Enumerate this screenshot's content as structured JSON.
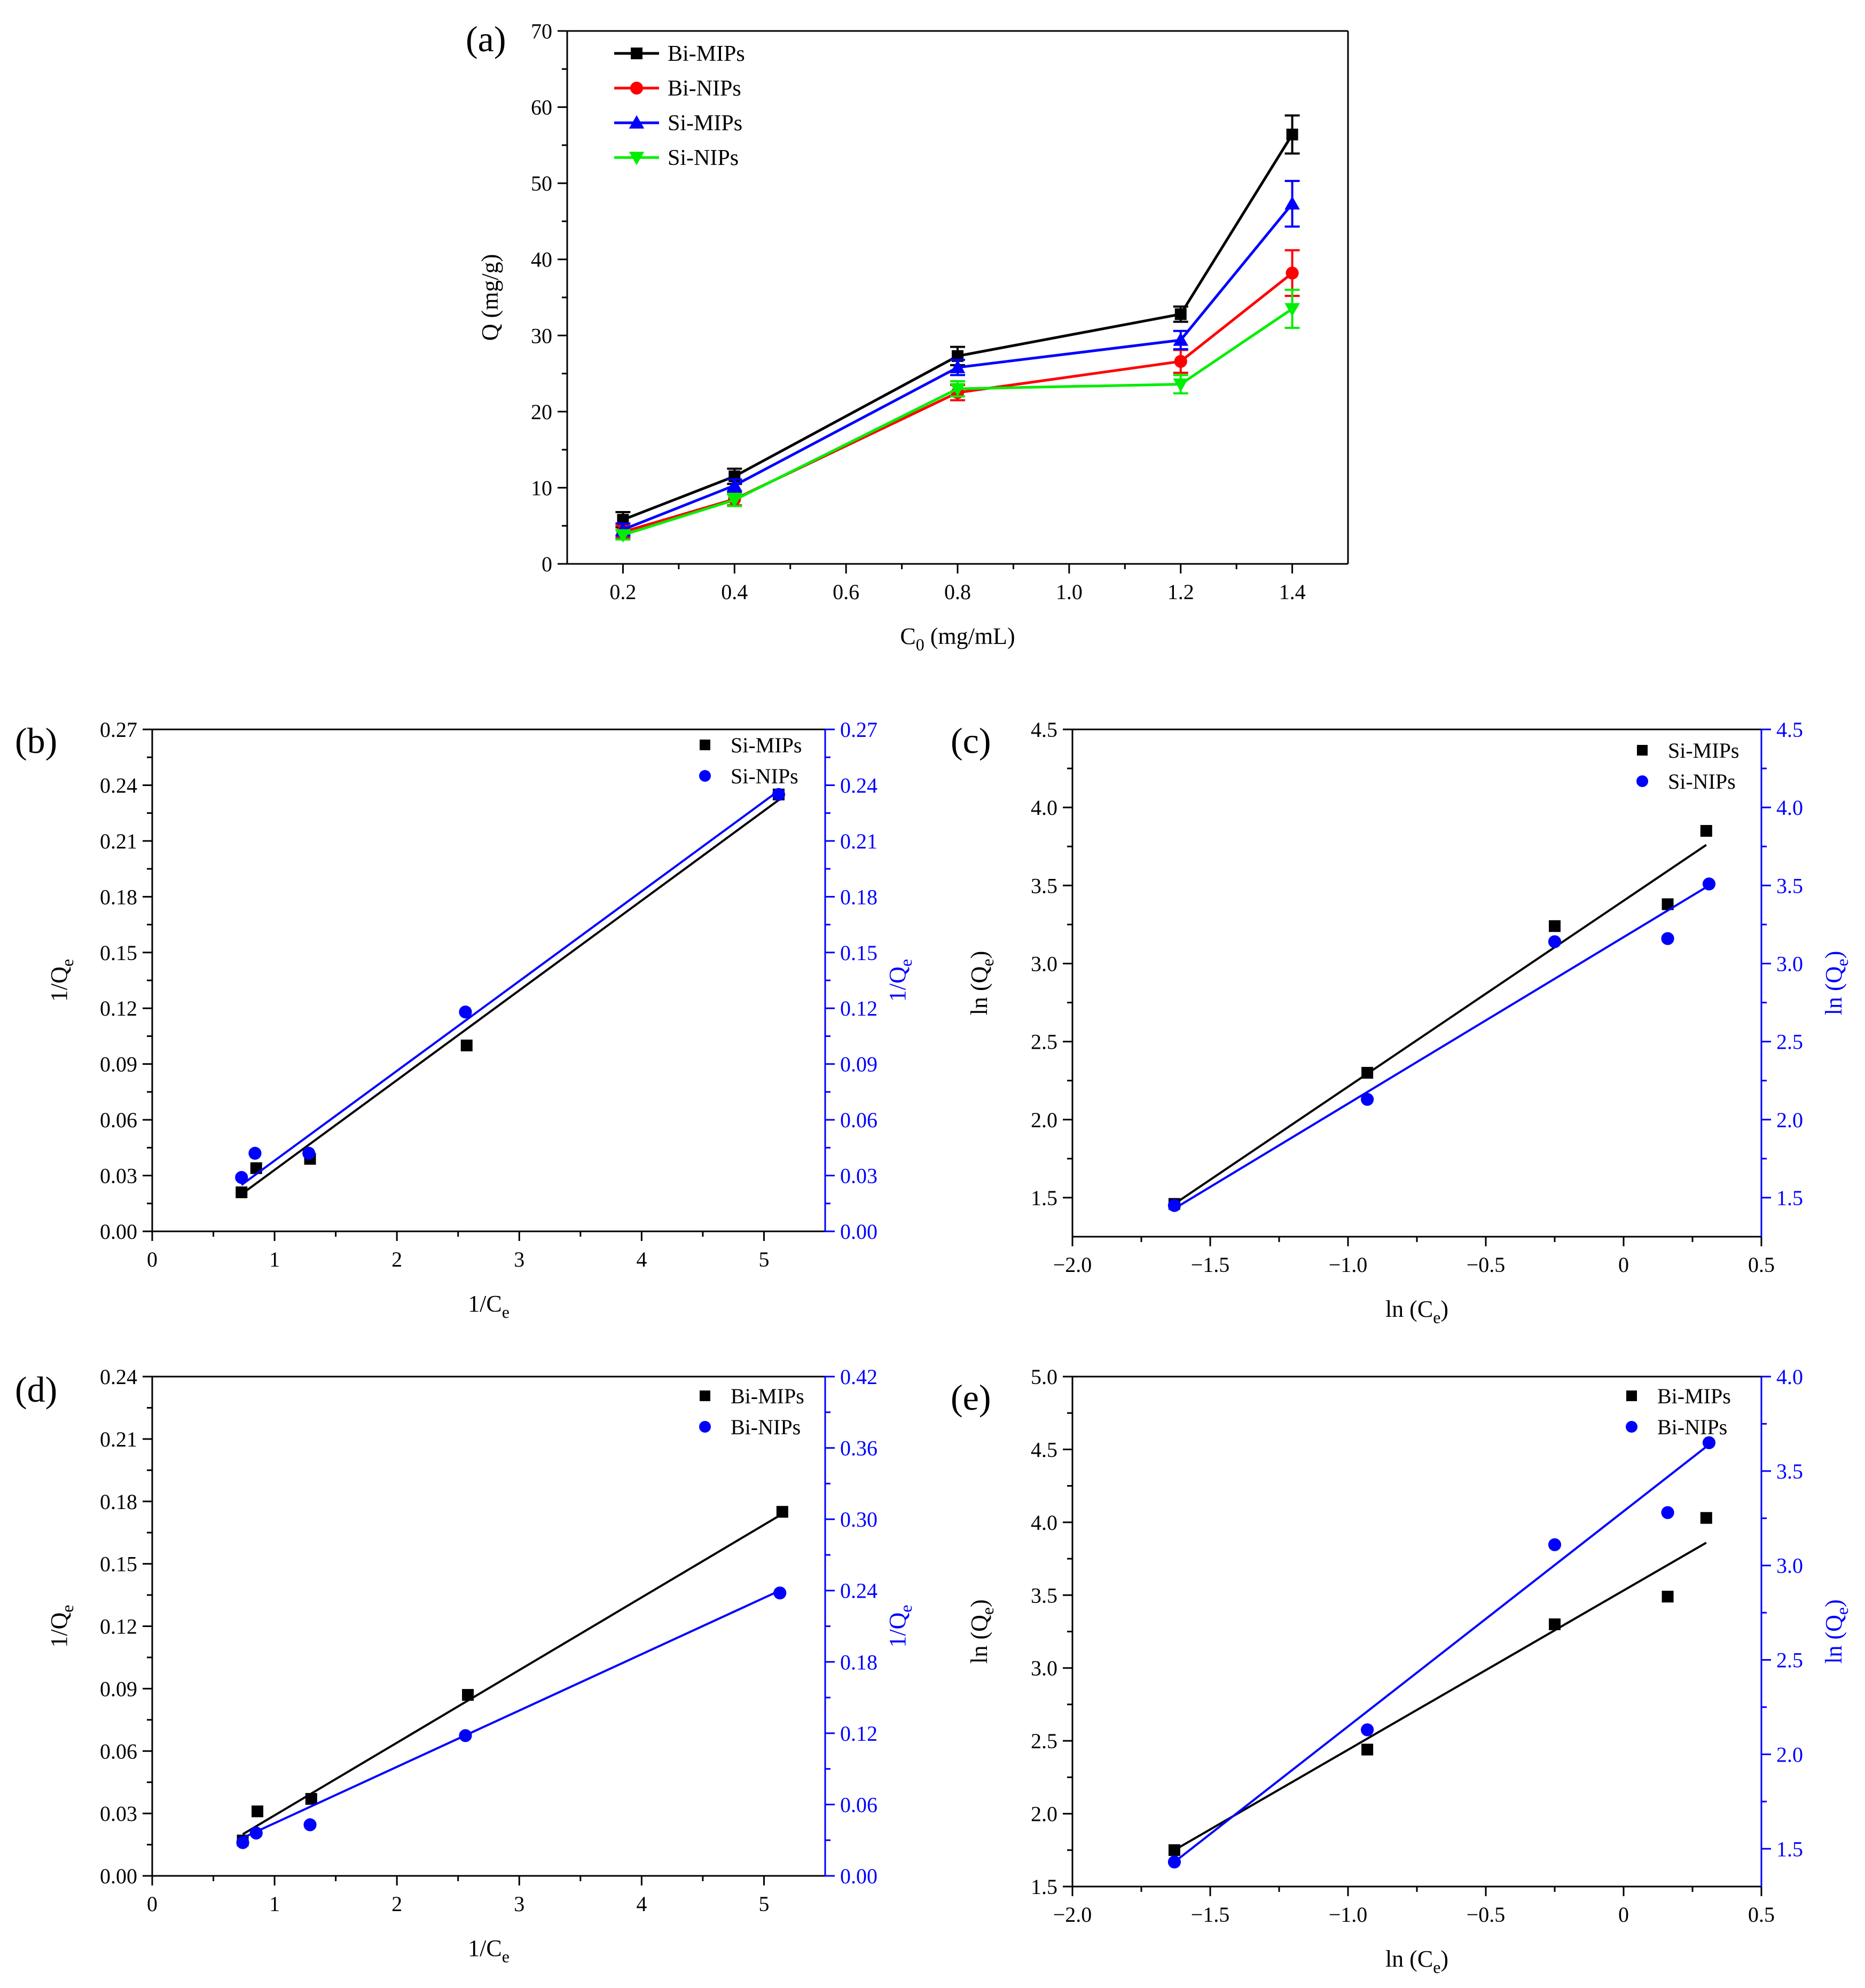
{
  "figure": {
    "description_labels": [
      "(a)",
      "(b)",
      "(c)",
      "(d)",
      "(e)"
    ]
  },
  "chart_data": [
    {
      "id": "a",
      "panel_label": "(a)",
      "type": "line",
      "xlabel": "C",
      "xlabel_sub": "0",
      "xlabel_suffix": " (mg/mL)",
      "ylabel": "Q (mg/g)",
      "xlim": [
        0.1,
        1.5
      ],
      "ylim": [
        0,
        70
      ],
      "xticks": [
        0.2,
        0.4,
        0.6,
        0.8,
        1.0,
        1.2,
        1.4
      ],
      "xtick_labels": [
        "0.2",
        "0.4",
        "0.6",
        "0.8",
        "1.0",
        "1.2",
        "1.4"
      ],
      "yticks": [
        0,
        10,
        20,
        30,
        40,
        50,
        60,
        70
      ],
      "ytick_labels": [
        "0",
        "10",
        "20",
        "30",
        "40",
        "50",
        "60",
        "70"
      ],
      "legend_position": "top-left",
      "x": [
        0.2,
        0.4,
        0.8,
        1.2,
        1.4
      ],
      "series": [
        {
          "name": "Bi-MIPs",
          "color": "#000000",
          "marker": "square",
          "values": [
            5.8,
            11.5,
            27.3,
            32.8,
            56.4
          ],
          "errors": [
            1.0,
            1.0,
            1.2,
            1.0,
            2.5
          ]
        },
        {
          "name": "Bi-NIPs",
          "color": "#ff0000",
          "marker": "circle",
          "values": [
            4.2,
            8.5,
            22.5,
            26.6,
            38.2
          ],
          "errors": [
            0.8,
            0.8,
            1.0,
            1.5,
            3.0
          ]
        },
        {
          "name": "Si-MIPs",
          "color": "#0000ff",
          "marker": "triangle-up",
          "values": [
            4.5,
            10.3,
            25.8,
            29.4,
            47.3
          ],
          "errors": [
            0.8,
            0.8,
            1.0,
            1.2,
            3.0
          ]
        },
        {
          "name": "Si-NIPs",
          "color": "#00ee00",
          "marker": "triangle-down",
          "values": [
            3.8,
            8.4,
            23.0,
            23.6,
            33.5
          ],
          "errors": [
            0.6,
            0.8,
            1.0,
            1.2,
            2.5
          ]
        }
      ]
    },
    {
      "id": "b",
      "panel_label": "(b)",
      "type": "scatter",
      "xlabel": "1/C",
      "xlabel_sub": "e",
      "ylabel": "1/Q",
      "ylabel_sub": "e",
      "y2label": "1/Q",
      "y2label_sub": "e",
      "xlim": [
        0,
        5.5
      ],
      "ylim": [
        0,
        0.27
      ],
      "y2lim": [
        0,
        0.27
      ],
      "xticks": [
        0,
        1,
        2,
        3,
        4,
        5
      ],
      "xtick_labels": [
        "0",
        "1",
        "2",
        "3",
        "4",
        "5"
      ],
      "yticks": [
        0,
        0.03,
        0.06,
        0.09,
        0.12,
        0.15,
        0.18,
        0.21,
        0.24,
        0.27
      ],
      "ytick_labels": [
        "0.00",
        "0.03",
        "0.06",
        "0.09",
        "0.12",
        "0.15",
        "0.18",
        "0.21",
        "0.24",
        "0.27"
      ],
      "y2ticks": [
        0,
        0.03,
        0.06,
        0.09,
        0.12,
        0.15,
        0.18,
        0.21,
        0.24,
        0.27
      ],
      "y2tick_labels": [
        "0.00",
        "0.03",
        "0.06",
        "0.09",
        "0.12",
        "0.15",
        "0.18",
        "0.21",
        "0.24",
        "0.27"
      ],
      "legend_position": "top-right",
      "series": [
        {
          "name": "Si-MIPs",
          "color": "#000000",
          "marker": "square",
          "axis": "left",
          "x": [
            0.73,
            0.85,
            1.29,
            2.57,
            5.12
          ],
          "values": [
            0.021,
            0.034,
            0.039,
            0.1,
            0.235
          ],
          "fit": [
            [
              0.73,
              0.02
            ],
            [
              5.12,
              0.232
            ]
          ]
        },
        {
          "name": "Si-NIPs",
          "color": "#0000ff",
          "marker": "circle",
          "axis": "right",
          "x": [
            0.73,
            0.84,
            1.28,
            2.56,
            5.12
          ],
          "values": [
            0.029,
            0.042,
            0.042,
            0.118,
            0.235
          ],
          "fit": [
            [
              0.73,
              0.025
            ],
            [
              5.12,
              0.237
            ]
          ]
        }
      ]
    },
    {
      "id": "c",
      "panel_label": "(c)",
      "type": "scatter",
      "xlabel": "ln (C",
      "xlabel_sub": "e",
      "xlabel_suffix": ")",
      "ylabel": "ln (Q",
      "ylabel_sub": "e",
      "ylabel_suffix": ")",
      "y2label": "ln (Q",
      "y2label_sub": "e",
      "y2label_suffix": ")",
      "xlim": [
        -2.0,
        0.5
      ],
      "ylim": [
        1.25,
        4.5
      ],
      "y2lim": [
        1.25,
        4.5
      ],
      "xticks": [
        -2.0,
        -1.5,
        -1.0,
        -0.5,
        0,
        0.5
      ],
      "xtick_labels": [
        "−2.0",
        "−1.5",
        "−1.0",
        "−0.5",
        "0",
        "0.5"
      ],
      "yticks": [
        1.5,
        2.0,
        2.5,
        3.0,
        3.5,
        4.0,
        4.5
      ],
      "ytick_labels": [
        "1.5",
        "2.0",
        "2.5",
        "3.0",
        "3.5",
        "4.0",
        "4.5"
      ],
      "y2ticks": [
        1.5,
        2.0,
        2.5,
        3.0,
        3.5,
        4.0,
        4.5
      ],
      "y2tick_labels": [
        "1.5",
        "2.0",
        "2.5",
        "3.0",
        "3.5",
        "4.0",
        "4.5"
      ],
      "legend_position": "top-right",
      "series": [
        {
          "name": "Si-MIPs",
          "color": "#000000",
          "marker": "square",
          "axis": "left",
          "x": [
            -1.63,
            -0.93,
            -0.25,
            0.16,
            0.3
          ],
          "values": [
            1.46,
            2.3,
            3.24,
            3.38,
            3.85
          ],
          "fit": [
            [
              -1.63,
              1.46
            ],
            [
              0.3,
              3.76
            ]
          ]
        },
        {
          "name": "Si-NIPs",
          "color": "#0000ff",
          "marker": "circle",
          "axis": "right",
          "x": [
            -1.63,
            -0.93,
            -0.25,
            0.16,
            0.31
          ],
          "values": [
            1.45,
            2.13,
            3.14,
            3.16,
            3.51
          ],
          "fit": [
            [
              -1.63,
              1.43
            ],
            [
              0.31,
              3.5
            ]
          ]
        }
      ]
    },
    {
      "id": "d",
      "panel_label": "(d)",
      "type": "scatter",
      "xlabel": "1/C",
      "xlabel_sub": "e",
      "ylabel": "1/Q",
      "ylabel_sub": "e",
      "y2label": "1/Q",
      "y2label_sub": "e",
      "xlim": [
        0,
        5.5
      ],
      "ylim": [
        0,
        0.24
      ],
      "y2lim": [
        0,
        0.42
      ],
      "xticks": [
        0,
        1,
        2,
        3,
        4,
        5
      ],
      "xtick_labels": [
        "0",
        "1",
        "2",
        "3",
        "4",
        "5"
      ],
      "yticks": [
        0,
        0.03,
        0.06,
        0.09,
        0.12,
        0.15,
        0.18,
        0.21,
        0.24
      ],
      "ytick_labels": [
        "0.00",
        "0.03",
        "0.06",
        "0.09",
        "0.12",
        "0.15",
        "0.18",
        "0.21",
        "0.24"
      ],
      "y2ticks": [
        0,
        0.06,
        0.12,
        0.18,
        0.24,
        0.3,
        0.36,
        0.42
      ],
      "y2tick_labels": [
        "0.00",
        "0.06",
        "0.12",
        "0.18",
        "0.24",
        "0.30",
        "0.36",
        "0.42"
      ],
      "legend_position": "top-right",
      "series": [
        {
          "name": "Bi-MIPs",
          "color": "#000000",
          "marker": "square",
          "axis": "left",
          "x": [
            0.74,
            0.86,
            1.3,
            2.58,
            5.15
          ],
          "values": [
            0.017,
            0.031,
            0.037,
            0.087,
            0.175
          ],
          "fit": [
            [
              0.74,
              0.02
            ],
            [
              5.15,
              0.174
            ]
          ]
        },
        {
          "name": "Bi-NIPs",
          "color": "#0000ff",
          "marker": "circle",
          "axis": "right",
          "x": [
            0.74,
            0.85,
            1.29,
            2.56,
            5.13
          ],
          "values": [
            0.028,
            0.036,
            0.043,
            0.118,
            0.238
          ],
          "fit": [
            [
              0.74,
              0.032
            ],
            [
              5.13,
              0.24
            ]
          ]
        }
      ]
    },
    {
      "id": "e",
      "panel_label": "(e)",
      "type": "scatter",
      "xlabel": "ln (C",
      "xlabel_sub": "e",
      "xlabel_suffix": ")",
      "ylabel": "ln (Q",
      "ylabel_sub": "e",
      "ylabel_suffix": ")",
      "y2label": "ln (Q",
      "y2label_sub": "e",
      "y2label_suffix": ")",
      "xlim": [
        -2.0,
        0.5
      ],
      "ylim": [
        1.5,
        5.0
      ],
      "y2lim": [
        1.3,
        4.0
      ],
      "xticks": [
        -2.0,
        -1.5,
        -1.0,
        -0.5,
        0,
        0.5
      ],
      "xtick_labels": [
        "−2.0",
        "−1.5",
        "−1.0",
        "−0.5",
        "0",
        "0.5"
      ],
      "yticks": [
        1.5,
        2.0,
        2.5,
        3.0,
        3.5,
        4.0,
        4.5,
        5.0
      ],
      "ytick_labels": [
        "1.5",
        "2.0",
        "2.5",
        "3.0",
        "3.5",
        "4.0",
        "4.5",
        "5.0"
      ],
      "y2ticks": [
        1.5,
        2.0,
        2.5,
        3.0,
        3.5,
        4.0
      ],
      "y2tick_labels": [
        "1.5",
        "2.0",
        "2.5",
        "3.0",
        "3.5",
        "4.0"
      ],
      "legend_position": "top-right",
      "series": [
        {
          "name": "Bi-MIPs",
          "color": "#000000",
          "marker": "square",
          "axis": "left",
          "x": [
            -1.63,
            -0.93,
            -0.25,
            0.16,
            0.3
          ],
          "values": [
            1.75,
            2.44,
            3.3,
            3.49,
            4.03
          ],
          "fit": [
            [
              -1.63,
              1.75
            ],
            [
              0.3,
              3.86
            ]
          ]
        },
        {
          "name": "Bi-NIPs",
          "color": "#0000ff",
          "marker": "circle",
          "axis": "right",
          "x": [
            -1.63,
            -0.93,
            -0.25,
            0.16,
            0.31
          ],
          "values": [
            1.43,
            2.13,
            3.11,
            3.28,
            3.65
          ],
          "fit": [
            [
              -1.63,
              1.43
            ],
            [
              0.31,
              3.64
            ]
          ]
        }
      ]
    }
  ]
}
